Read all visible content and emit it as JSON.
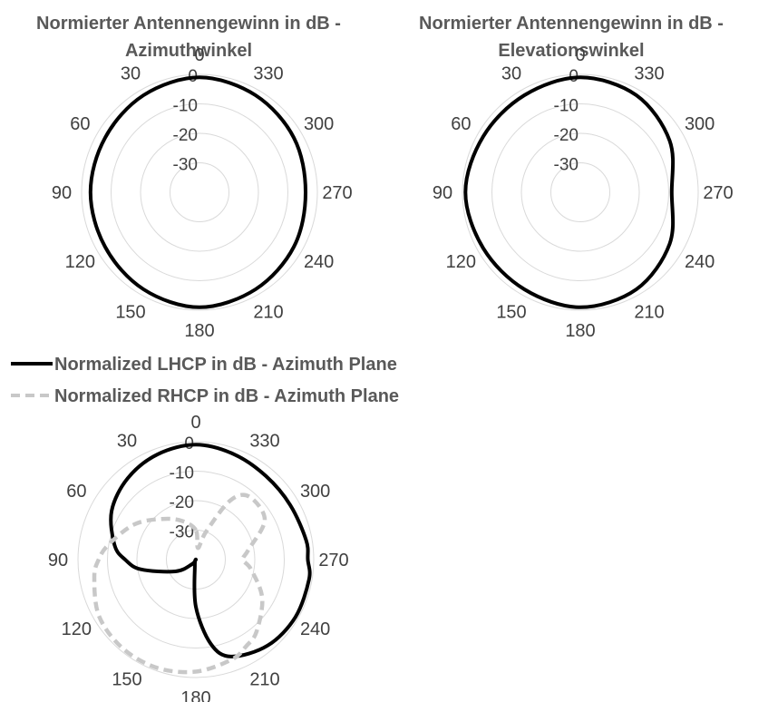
{
  "chart_data": [
    {
      "type": "polar-line",
      "title_lines": [
        "Normierter Antennengewinn in dB -",
        "Azimuthwinkel"
      ],
      "angle_ticks": [
        "0",
        "30",
        "60",
        "90",
        "120",
        "150",
        "180",
        "210",
        "240",
        "270",
        "300",
        "330"
      ],
      "angle_values": [
        0,
        30,
        60,
        90,
        120,
        150,
        180,
        210,
        240,
        270,
        300,
        330
      ],
      "radial_ticks": [
        "0",
        "-10",
        "-20",
        "-30"
      ],
      "radial_range": [
        -40,
        0
      ],
      "angular_direction": "clockwise-from-top (0 top, 90 left)",
      "series": [
        {
          "color": "#000000",
          "dash": "solid",
          "theta": [
            0,
            30,
            60,
            90,
            120,
            150,
            180,
            210,
            240,
            270,
            300,
            330
          ],
          "r": [
            -1,
            -2,
            -3,
            -3,
            -3,
            -2,
            -1,
            -2,
            -3,
            -4,
            -3,
            -2
          ]
        }
      ]
    },
    {
      "type": "polar-line",
      "title_lines": [
        "Normierter Antennengewinn in dB -",
        "Elevationswinkel"
      ],
      "angle_ticks": [
        "0",
        "30",
        "60",
        "90",
        "120",
        "150",
        "180",
        "210",
        "240",
        "270",
        "300",
        "330"
      ],
      "angle_values": [
        0,
        30,
        60,
        90,
        120,
        150,
        180,
        210,
        240,
        270,
        300,
        330
      ],
      "radial_ticks": [
        "0",
        "-10",
        "-20",
        "-30"
      ],
      "radial_range": [
        -40,
        0
      ],
      "angular_direction": "clockwise-from-top (0 top, 90 left)",
      "series": [
        {
          "color": "#000000",
          "dash": "solid",
          "theta": [
            0,
            30,
            60,
            90,
            120,
            150,
            180,
            210,
            240,
            270,
            300,
            330
          ],
          "r": [
            -1,
            -2,
            -2,
            -1,
            -2,
            -2,
            -1,
            -2,
            -5,
            -9,
            -5,
            -2
          ]
        }
      ]
    },
    {
      "type": "polar-line",
      "title_lines": [],
      "angle_ticks": [
        "0",
        "30",
        "60",
        "90",
        "120",
        "150",
        "180",
        "210",
        "240",
        "270",
        "300",
        "330"
      ],
      "angle_values": [
        0,
        30,
        60,
        90,
        120,
        150,
        180,
        210,
        240,
        270,
        300,
        330
      ],
      "radial_ticks": [
        "0",
        "-10",
        "-20",
        "-30"
      ],
      "radial_range": [
        -40,
        0
      ],
      "angular_direction": "clockwise-from-top (0 top, 90 left)",
      "legend": "top-left",
      "series": [
        {
          "name": "Normalized LHCP in dB - Azimuth Plane",
          "color": "#000000",
          "dash": "solid",
          "theta": [
            0,
            20,
            40,
            60,
            80,
            90,
            100,
            120,
            140,
            160,
            170,
            180,
            190,
            200,
            220,
            240,
            260,
            270,
            280,
            300,
            320,
            340
          ],
          "r": [
            -1,
            -2,
            -4,
            -7,
            -12,
            -16,
            -21,
            -32,
            -38,
            -40,
            -38,
            -24,
            -11,
            -5,
            -2,
            -1,
            -1,
            -2,
            -2,
            -3,
            -3,
            -2
          ]
        },
        {
          "name": "Normalized RHCP in dB - Azimuth Plane",
          "color": "#c8c8c8",
          "dash": "dashed",
          "theta": [
            0,
            20,
            40,
            60,
            80,
            90,
            100,
            120,
            140,
            160,
            180,
            200,
            210,
            220,
            240,
            260,
            270,
            280,
            300,
            320,
            330,
            340,
            350
          ],
          "r": [
            -30,
            -26,
            -22,
            -16,
            -10,
            -7,
            -5,
            -2,
            -1,
            -1,
            -2,
            -4,
            -6,
            -8,
            -14,
            -21,
            -24,
            -22,
            -13,
            -12,
            -17,
            -30,
            -36
          ]
        }
      ]
    }
  ]
}
